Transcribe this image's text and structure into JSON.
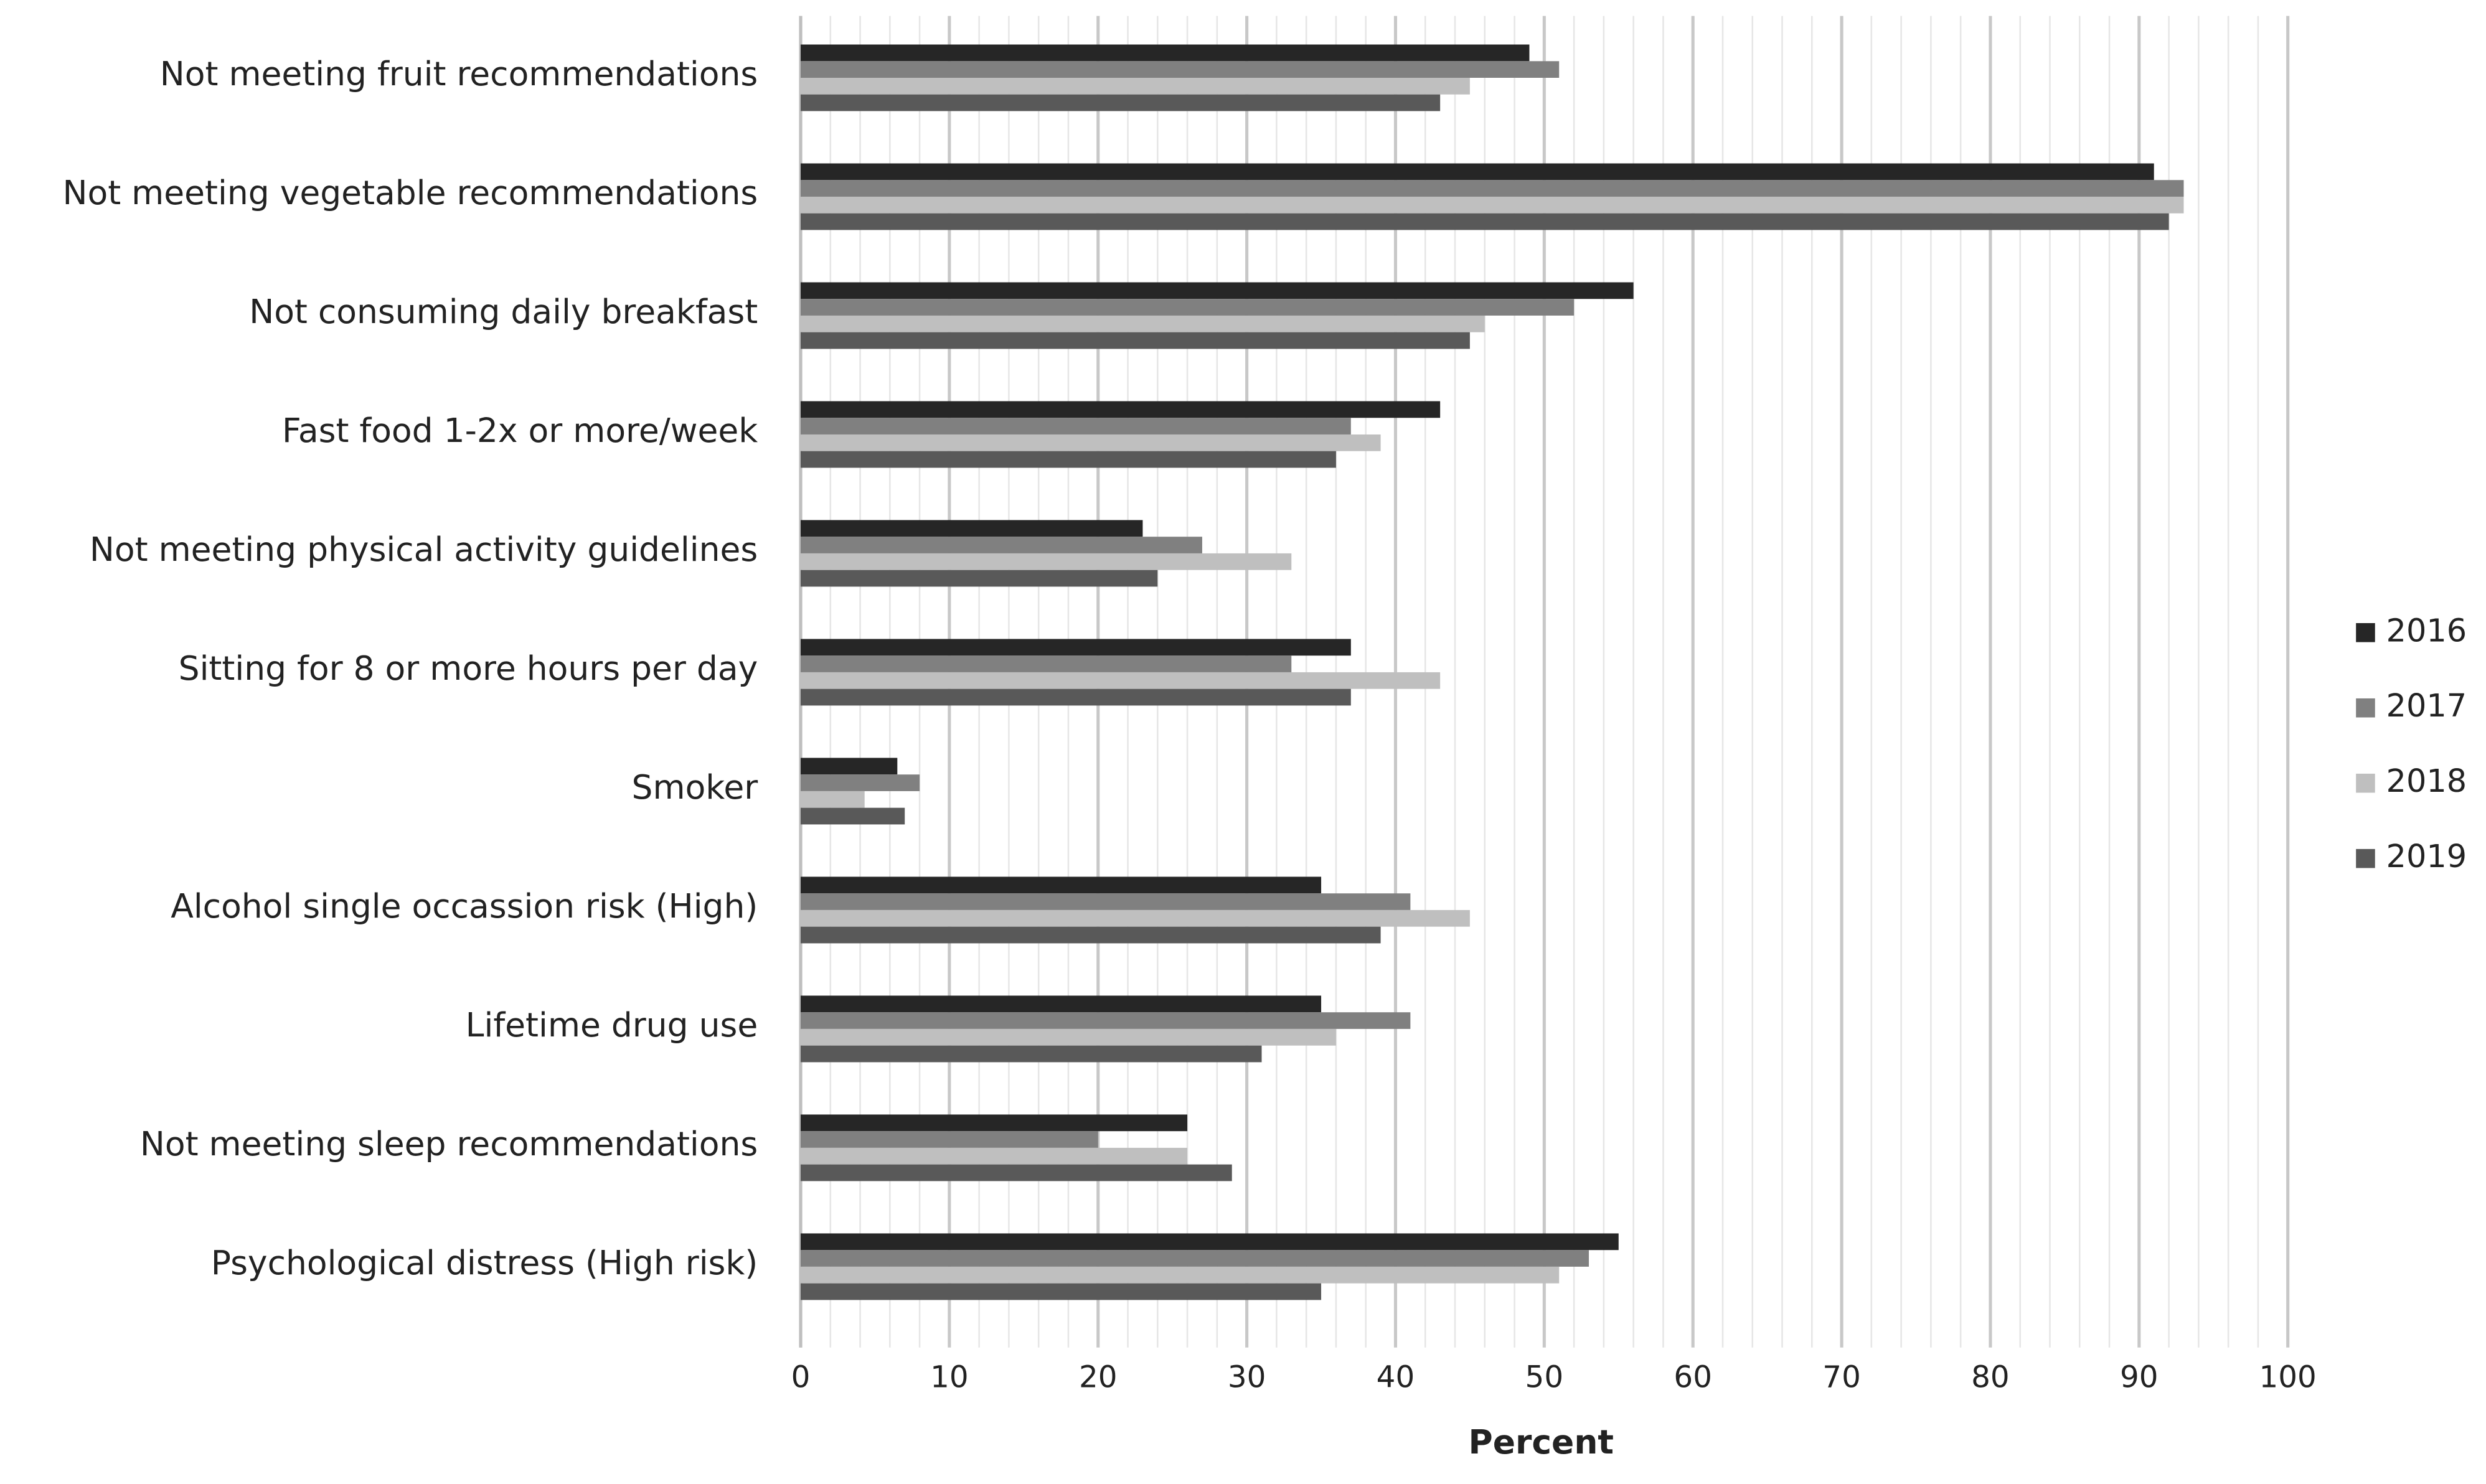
{
  "chart_data": {
    "type": "barh",
    "categories": [
      "Not meeting fruit recommendations",
      "Not meeting vegetable recommendations",
      "Not consuming daily breakfast",
      "Fast food 1-2x or more/week",
      "Not meeting physical activity guidelines",
      "Sitting for 8 or more hours per day",
      "Smoker",
      "Alcohol single occassion risk (High)",
      "Lifetime drug use",
      "Not meeting sleep recommendations",
      "Psychological distress (High risk)"
    ],
    "series": [
      {
        "name": "2016",
        "color": "#262626",
        "values": [
          49,
          91,
          56,
          43,
          23,
          37,
          6.5,
          35,
          35,
          26,
          55
        ]
      },
      {
        "name": "2017",
        "color": "#808080",
        "values": [
          51,
          93,
          52,
          37,
          27,
          33,
          8,
          41,
          41,
          20,
          53
        ]
      },
      {
        "name": "2018",
        "color": "#bfbfbf",
        "values": [
          45,
          93,
          46,
          39,
          33,
          43,
          4.3,
          45,
          36,
          26,
          51
        ]
      },
      {
        "name": "2019",
        "color": "#595959",
        "values": [
          43,
          92,
          45,
          36,
          24,
          37,
          7,
          39,
          31,
          29,
          35
        ]
      }
    ],
    "xlabel": "Percent",
    "xlim": [
      0,
      100
    ],
    "xticks": [
      0,
      10,
      20,
      30,
      40,
      50,
      60,
      70,
      80,
      90,
      100
    ],
    "xminorticks": [
      2,
      4,
      6,
      8,
      12,
      14,
      16,
      18,
      22,
      24,
      26,
      28,
      32,
      34,
      36,
      38,
      42,
      44,
      46,
      48,
      52,
      54,
      56,
      58,
      62,
      64,
      66,
      68,
      72,
      74,
      76,
      78,
      82,
      84,
      86,
      88,
      92,
      94,
      96,
      98
    ],
    "grid": true,
    "legend": "right"
  }
}
